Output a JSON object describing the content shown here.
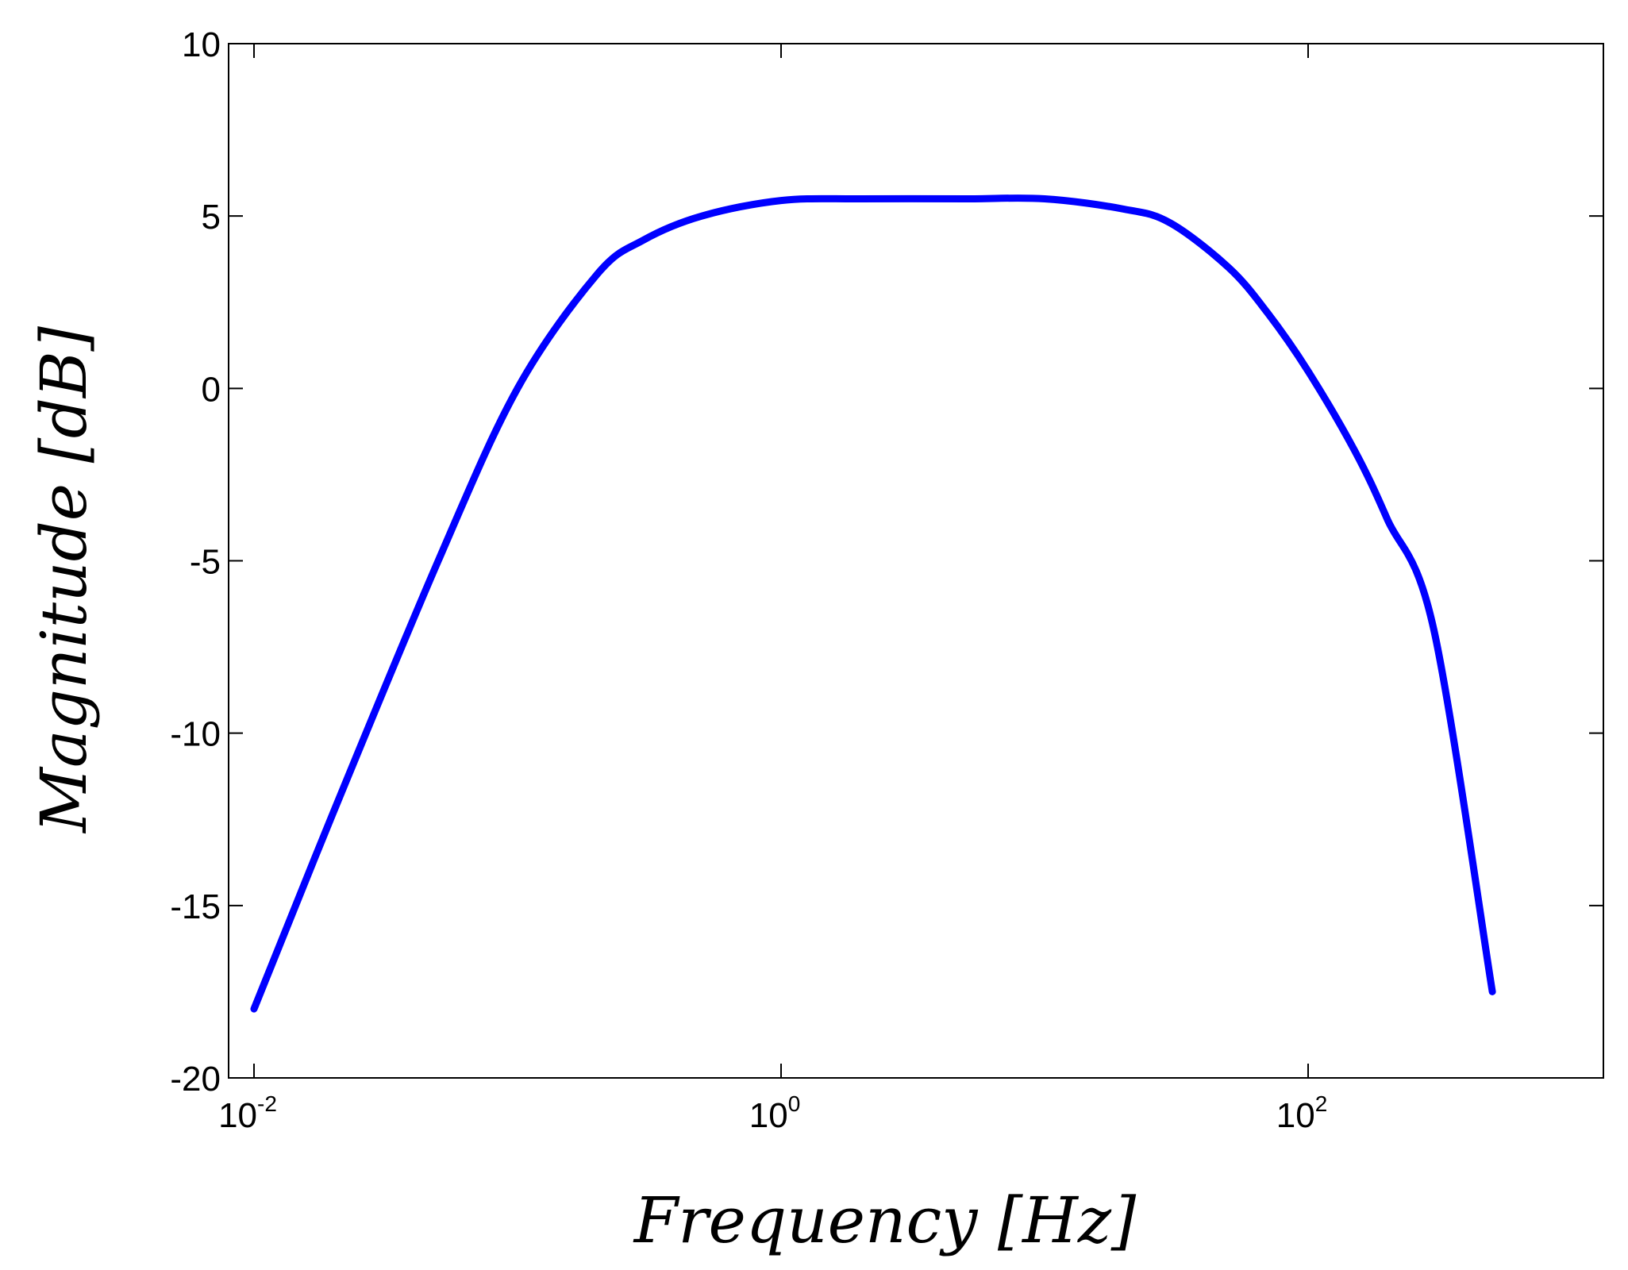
{
  "chart_data": {
    "type": "line",
    "xlabel": "Frequency [Hz]",
    "ylabel": "Magnitude [dB]",
    "x_scale": "log",
    "xlim": [
      0.01,
      1000
    ],
    "ylim": [
      -20,
      10
    ],
    "x_ticks": [
      {
        "base": "10",
        "exp": "-2",
        "value": 0.01
      },
      {
        "base": "10",
        "exp": "0",
        "value": 1
      },
      {
        "base": "10",
        "exp": "2",
        "value": 100
      }
    ],
    "y_ticks": [
      {
        "label": "10",
        "value": 10
      },
      {
        "label": "5",
        "value": 5
      },
      {
        "label": "0",
        "value": 0
      },
      {
        "label": "-5",
        "value": -5
      },
      {
        "label": "-10",
        "value": -10
      },
      {
        "label": "-15",
        "value": -15
      },
      {
        "label": "-20",
        "value": -20
      }
    ],
    "grid": false,
    "series": [
      {
        "color": "#0000ff",
        "x": [
          0.01,
          0.02,
          0.05,
          0.1,
          0.2,
          0.3,
          0.5,
          1,
          2,
          5,
          10,
          20,
          30,
          50,
          70,
          100,
          150,
          200,
          300,
          500
        ],
        "y": [
          -18.0,
          -12.3,
          -5.0,
          0.0,
          3.3,
          4.3,
          5.0,
          5.45,
          5.5,
          5.5,
          5.5,
          5.2,
          4.8,
          3.5,
          2.2,
          0.5,
          -1.8,
          -3.8,
          -7.0,
          -17.5
        ]
      }
    ]
  }
}
